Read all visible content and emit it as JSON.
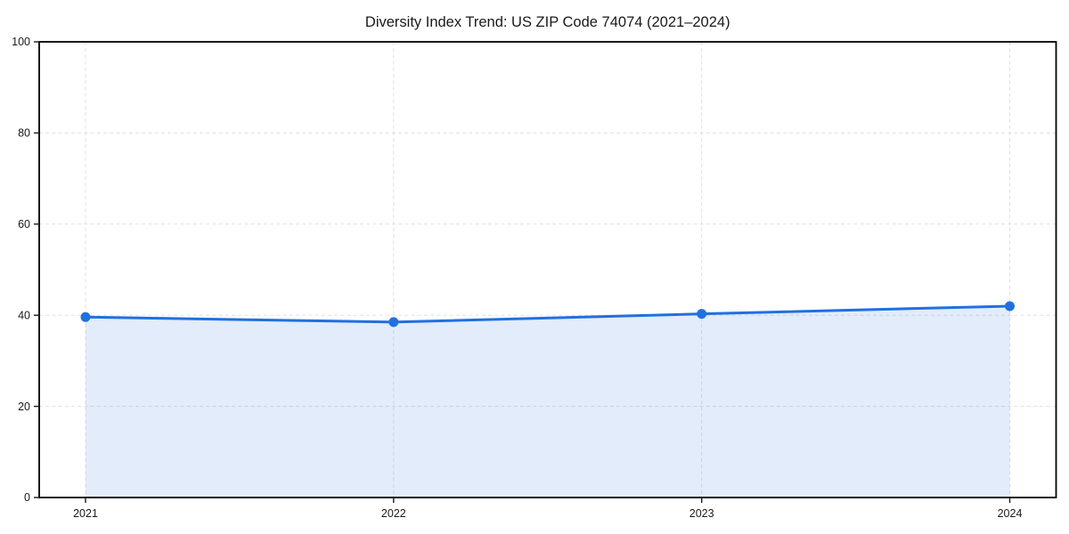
{
  "chart_data": {
    "type": "area",
    "title": "Diversity Index Trend: US ZIP Code 74074 (2021–2024)",
    "categories": [
      "2021",
      "2022",
      "2023",
      "2024"
    ],
    "series": [
      {
        "name": "Diversity Index",
        "values": [
          39.6,
          38.5,
          40.3,
          42.0
        ]
      }
    ],
    "xlabel": "",
    "ylabel": "",
    "ylim": [
      0,
      100
    ],
    "yticks": [
      0,
      20,
      40,
      60,
      80,
      100
    ],
    "grid": true,
    "grid_style": "dashed",
    "legend": false,
    "marker": "circle",
    "colors": {
      "line": "#2070e0",
      "marker": "#2070e0",
      "fill": "#2070e0",
      "fill_opacity": 0.13,
      "grid": "#e0e0e0",
      "spine": "#000000",
      "text": "#1a1a1a",
      "background": "#ffffff"
    }
  }
}
